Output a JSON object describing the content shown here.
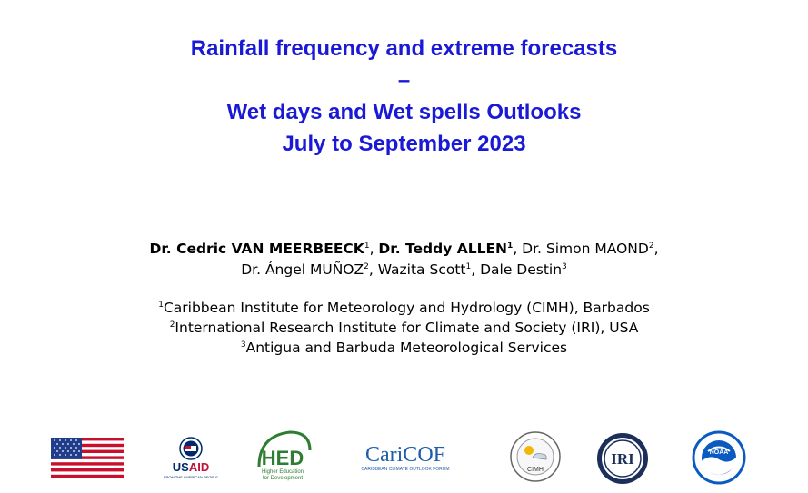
{
  "title": {
    "line1": "Rainfall frequency and extreme forecasts",
    "line2": "–",
    "line3": "Wet days and Wet spells Outlooks",
    "line4": "July to September 2023"
  },
  "authors": {
    "a1_name": "Dr. Cedric VAN MEERBEECK",
    "a1_sup": "1",
    "a2_name": "Dr. Teddy ALLEN",
    "a2_sup": "1",
    "a3_name": "Dr. Simon MAOND",
    "a3_sup": "2",
    "a4_name": "Dr. Ángel MUÑOZ",
    "a4_sup": "2",
    "a5_name": "Wazita Scott",
    "a5_sup": "1",
    "a6_name": "Dale Destin",
    "a6_sup": "3"
  },
  "affiliations": [
    {
      "sup": "1",
      "text": "Caribbean Institute for Meteorology and Hydrology (CIMH), Barbados"
    },
    {
      "sup": "2",
      "text": "International Research Institute for Climate and Society (IRI), USA"
    },
    {
      "sup": "3",
      "text": "Antigua and Barbuda Meteorological Services"
    }
  ],
  "logos": {
    "usaid_text": "USAID",
    "usaid_sub": "FROM THE AMERICAN PEOPLE",
    "hed_text": "HED",
    "hed_sub1": "Higher Education",
    "hed_sub2": "for Development",
    "caricof_text": "CariCOF",
    "caricof_sub": "CARIBBEAN CLIMATE OUTLOOK FORUM",
    "cimh_text": "CIMH",
    "iri_text": "IRI",
    "noaa_text": "NOAA"
  },
  "colors": {
    "title": "#1a1ad6",
    "flag_red": "#c8102e",
    "flag_blue": "#1f3d8a",
    "usaid_blue": "#002a6c",
    "usaid_red": "#c2113a",
    "hed_green": "#2e7d32",
    "caricof_blue": "#1f5fa8",
    "iri_navy": "#1b2f5a",
    "noaa_blue": "#0a5bbf"
  }
}
